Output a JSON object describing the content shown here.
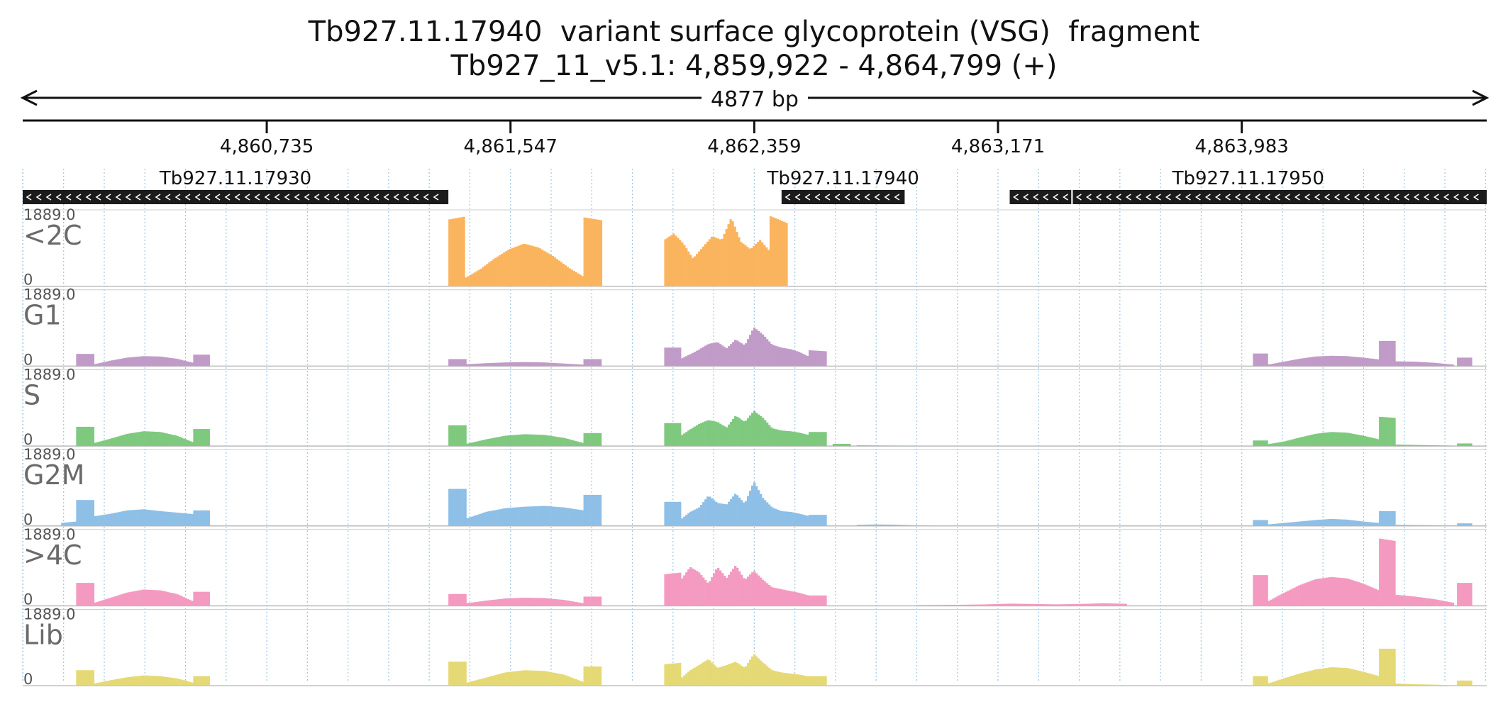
{
  "title_line1": "Tb927.11.17940  variant surface glycoprotein (VSG)  fragment",
  "title_line2": "Tb927_11_v5.1: 4,859,922 - 4,864,799 (+)",
  "chart_data": {
    "type": "area",
    "region": {
      "chrom": "Tb927_11_v5.1",
      "start": 4859922,
      "end": 4864799,
      "strand": "+"
    },
    "span_label": "4877 bp",
    "ticks": [
      {
        "pos": 4860735,
        "label": "4,860,735"
      },
      {
        "pos": 4861547,
        "label": "4,861,547"
      },
      {
        "pos": 4862359,
        "label": "4,862,359"
      },
      {
        "pos": 4863171,
        "label": "4,863,171"
      },
      {
        "pos": 4863983,
        "label": "4,863,983"
      }
    ],
    "genes": [
      {
        "name": "Tb927.11.17930",
        "strand": "-",
        "blocks": [
          [
            4859922,
            4861340
          ]
        ]
      },
      {
        "name": "Tb927.11.17940",
        "strand": "-",
        "blocks": [
          [
            4862450,
            4862860
          ]
        ]
      },
      {
        "name": "Tb927.11.17950",
        "strand": "-",
        "blocks": [
          [
            4863210,
            4863415
          ],
          [
            4863420,
            4864799
          ]
        ]
      }
    ],
    "ylim": [
      0,
      1889.0
    ],
    "ymax_label": "1889.0",
    "ymin_label": "0",
    "tracks": [
      {
        "name": "<2C",
        "color": "#fbb45e",
        "segments": [
          {
            "start": 4861340,
            "end": 4861395,
            "values": [
              1800,
              1880
            ]
          },
          {
            "start": 4861395,
            "end": 4861790,
            "values": [
              220,
              450,
              750,
              1000,
              1150,
              1040,
              800,
              500,
              260
            ]
          },
          {
            "start": 4861790,
            "end": 4861852,
            "values": [
              1860,
              1780
            ]
          },
          {
            "start": 4862059,
            "end": 4862410,
            "values": [
              1250,
              1420,
              1150,
              750,
              1050,
              1350,
              1250,
              1850,
              1200,
              1000,
              1250,
              950
            ]
          },
          {
            "start": 4862410,
            "end": 4862470,
            "values": [
              1900,
              1700
            ]
          },
          {
            "start": 4862470,
            "end": 4862440,
            "values": []
          }
        ]
      },
      {
        "name": "G1",
        "color": "#c19bc8",
        "segments": [
          {
            "start": 4860100,
            "end": 4860160,
            "values": [
              330,
              330
            ]
          },
          {
            "start": 4860160,
            "end": 4860490,
            "values": [
              50,
              150,
              230,
              270,
              260,
              200,
              90
            ]
          },
          {
            "start": 4860490,
            "end": 4860545,
            "values": [
              310,
              310
            ]
          },
          {
            "start": 4861340,
            "end": 4861400,
            "values": [
              190,
              190
            ]
          },
          {
            "start": 4861400,
            "end": 4861790,
            "values": [
              50,
              80,
              100,
              110,
              100,
              70,
              40
            ]
          },
          {
            "start": 4861790,
            "end": 4861850,
            "values": [
              190,
              190
            ]
          },
          {
            "start": 4862059,
            "end": 4862115,
            "values": [
              500,
              500
            ]
          },
          {
            "start": 4862115,
            "end": 4862540,
            "values": [
              200,
              320,
              450,
              600,
              650,
              480,
              720,
              560,
              1050,
              850,
              580,
              500,
              460,
              380,
              260
            ]
          },
          {
            "start": 4862540,
            "end": 4862600,
            "values": [
              430,
              400
            ]
          },
          {
            "start": 4864020,
            "end": 4864070,
            "values": [
              340,
              340
            ]
          },
          {
            "start": 4864070,
            "end": 4864440,
            "values": [
              40,
              120,
              200,
              260,
              280,
              270,
              230,
              180
            ]
          },
          {
            "start": 4864440,
            "end": 4864495,
            "values": [
              680,
              680
            ]
          },
          {
            "start": 4864495,
            "end": 4864690,
            "values": [
              130,
              120,
              90,
              40
            ]
          },
          {
            "start": 4864700,
            "end": 4864750,
            "values": [
              230,
              230
            ]
          }
        ]
      },
      {
        "name": "S",
        "color": "#7fc97f",
        "segments": [
          {
            "start": 4860100,
            "end": 4860160,
            "values": [
              520,
              520
            ]
          },
          {
            "start": 4860160,
            "end": 4860490,
            "values": [
              80,
              200,
              330,
              400,
              380,
              280,
              100
            ]
          },
          {
            "start": 4860490,
            "end": 4860545,
            "values": [
              460,
              460
            ]
          },
          {
            "start": 4861340,
            "end": 4861400,
            "values": [
              560,
              560
            ]
          },
          {
            "start": 4861400,
            "end": 4861790,
            "values": [
              60,
              180,
              280,
              320,
              300,
              220,
              80
            ]
          },
          {
            "start": 4861790,
            "end": 4861850,
            "values": [
              350,
              350
            ]
          },
          {
            "start": 4862059,
            "end": 4862115,
            "values": [
              620,
              620
            ]
          },
          {
            "start": 4862115,
            "end": 4862540,
            "values": [
              280,
              450,
              600,
              700,
              650,
              500,
              820,
              650,
              950,
              760,
              480,
              420,
              400,
              360,
              300
            ]
          },
          {
            "start": 4862540,
            "end": 4862600,
            "values": [
              380,
              380
            ]
          },
          {
            "start": 4862620,
            "end": 4862680,
            "values": [
              60,
              60
            ]
          },
          {
            "start": 4862700,
            "end": 4862900,
            "values": [
              20,
              15,
              10,
              5
            ]
          },
          {
            "start": 4864020,
            "end": 4864070,
            "values": [
              150,
              150
            ]
          },
          {
            "start": 4864070,
            "end": 4864440,
            "values": [
              50,
              120,
              230,
              330,
              380,
              360,
              280,
              180
            ]
          },
          {
            "start": 4864440,
            "end": 4864495,
            "values": [
              790,
              760
            ]
          },
          {
            "start": 4864495,
            "end": 4864690,
            "values": [
              40,
              30,
              20,
              10
            ]
          },
          {
            "start": 4864700,
            "end": 4864750,
            "values": [
              70,
              70
            ]
          }
        ]
      },
      {
        "name": "G2M",
        "color": "#8ebfe6",
        "segments": [
          {
            "start": 4860050,
            "end": 4860100,
            "values": [
              80,
              120
            ]
          },
          {
            "start": 4860100,
            "end": 4860160,
            "values": [
              700,
              700
            ]
          },
          {
            "start": 4860160,
            "end": 4860490,
            "values": [
              260,
              330,
              420,
              450,
              400,
              360,
              320
            ]
          },
          {
            "start": 4860490,
            "end": 4860545,
            "values": [
              420,
              420
            ]
          },
          {
            "start": 4861340,
            "end": 4861400,
            "values": [
              1000,
              1000
            ]
          },
          {
            "start": 4861400,
            "end": 4861790,
            "values": [
              200,
              380,
              480,
              520,
              540,
              500,
              420
            ]
          },
          {
            "start": 4861790,
            "end": 4861850,
            "values": [
              840,
              840
            ]
          },
          {
            "start": 4862059,
            "end": 4862115,
            "values": [
              650,
              650
            ]
          },
          {
            "start": 4862115,
            "end": 4862540,
            "values": [
              180,
              380,
              500,
              820,
              620,
              580,
              880,
              600,
              1200,
              750,
              500,
              400,
              380,
              330,
              270
            ]
          },
          {
            "start": 4862540,
            "end": 4862600,
            "values": [
              300,
              300
            ]
          },
          {
            "start": 4862700,
            "end": 4862950,
            "values": [
              30,
              40,
              35,
              20,
              10
            ]
          },
          {
            "start": 4864020,
            "end": 4864070,
            "values": [
              160,
              160
            ]
          },
          {
            "start": 4864070,
            "end": 4864440,
            "values": [
              40,
              80,
              120,
              160,
              190,
              170,
              120,
              80
            ]
          },
          {
            "start": 4864440,
            "end": 4864495,
            "values": [
              400,
              400
            ]
          },
          {
            "start": 4864495,
            "end": 4864690,
            "values": [
              30,
              25,
              20,
              10
            ]
          },
          {
            "start": 4864700,
            "end": 4864750,
            "values": [
              70,
              70
            ]
          }
        ]
      },
      {
        "name": ">4C",
        "color": "#f49ac1",
        "segments": [
          {
            "start": 4860100,
            "end": 4860160,
            "values": [
              620,
              620
            ]
          },
          {
            "start": 4860160,
            "end": 4860490,
            "values": [
              80,
              220,
              360,
              440,
              420,
              320,
              120
            ]
          },
          {
            "start": 4860490,
            "end": 4860545,
            "values": [
              380,
              380
            ]
          },
          {
            "start": 4861340,
            "end": 4861400,
            "values": [
              320,
              320
            ]
          },
          {
            "start": 4861400,
            "end": 4861790,
            "values": [
              70,
              140,
              200,
              220,
              210,
              160,
              70
            ]
          },
          {
            "start": 4861790,
            "end": 4861850,
            "values": [
              250,
              250
            ]
          },
          {
            "start": 4862000,
            "end": 4862059,
            "values": [
              10,
              15
            ]
          },
          {
            "start": 4862059,
            "end": 4862115,
            "values": [
              850,
              900
            ]
          },
          {
            "start": 4862115,
            "end": 4862540,
            "values": [
              700,
              1050,
              900,
              600,
              1050,
              750,
              1100,
              700,
              950,
              700,
              500,
              450,
              400,
              350,
              280
            ]
          },
          {
            "start": 4862540,
            "end": 4862600,
            "values": [
              280,
              280
            ]
          },
          {
            "start": 4862900,
            "end": 4863600,
            "values": [
              20,
              25,
              30,
              40,
              60,
              50,
              40,
              50,
              70,
              55
            ]
          },
          {
            "start": 4864020,
            "end": 4864070,
            "values": [
              830,
              830
            ]
          },
          {
            "start": 4864070,
            "end": 4864440,
            "values": [
              120,
              350,
              560,
              720,
              780,
              740,
              600,
              420
            ]
          },
          {
            "start": 4864440,
            "end": 4864495,
            "values": [
              1820,
              1750
            ]
          },
          {
            "start": 4864495,
            "end": 4864690,
            "values": [
              300,
              250,
              180,
              80
            ]
          },
          {
            "start": 4864700,
            "end": 4864750,
            "values": [
              620,
              620
            ]
          }
        ]
      },
      {
        "name": "Lib",
        "color": "#e5d975",
        "segments": [
          {
            "start": 4860100,
            "end": 4860160,
            "values": [
              420,
              420
            ]
          },
          {
            "start": 4860160,
            "end": 4860490,
            "values": [
              60,
              150,
              230,
              280,
              260,
              200,
              80
            ]
          },
          {
            "start": 4860490,
            "end": 4860545,
            "values": [
              260,
              260
            ]
          },
          {
            "start": 4861340,
            "end": 4861400,
            "values": [
              650,
              650
            ]
          },
          {
            "start": 4861400,
            "end": 4861790,
            "values": [
              80,
              220,
              360,
              420,
              400,
              300,
              100
            ]
          },
          {
            "start": 4861790,
            "end": 4861850,
            "values": [
              520,
              520
            ]
          },
          {
            "start": 4862059,
            "end": 4862115,
            "values": [
              580,
              620
            ]
          },
          {
            "start": 4862115,
            "end": 4862540,
            "values": [
              200,
              420,
              560,
              720,
              480,
              560,
              650,
              480,
              860,
              620,
              420,
              360,
              330,
              300,
              250
            ]
          },
          {
            "start": 4862540,
            "end": 4862600,
            "values": [
              260,
              260
            ]
          },
          {
            "start": 4864020,
            "end": 4864070,
            "values": [
              260,
              260
            ]
          },
          {
            "start": 4864070,
            "end": 4864440,
            "values": [
              60,
              200,
              330,
              440,
              500,
              480,
              380,
              260
            ]
          },
          {
            "start": 4864440,
            "end": 4864495,
            "values": [
              1000,
              1000
            ]
          },
          {
            "start": 4864495,
            "end": 4864690,
            "values": [
              60,
              40,
              30,
              15
            ]
          },
          {
            "start": 4864700,
            "end": 4864750,
            "values": [
              140,
              140
            ]
          }
        ]
      }
    ]
  }
}
